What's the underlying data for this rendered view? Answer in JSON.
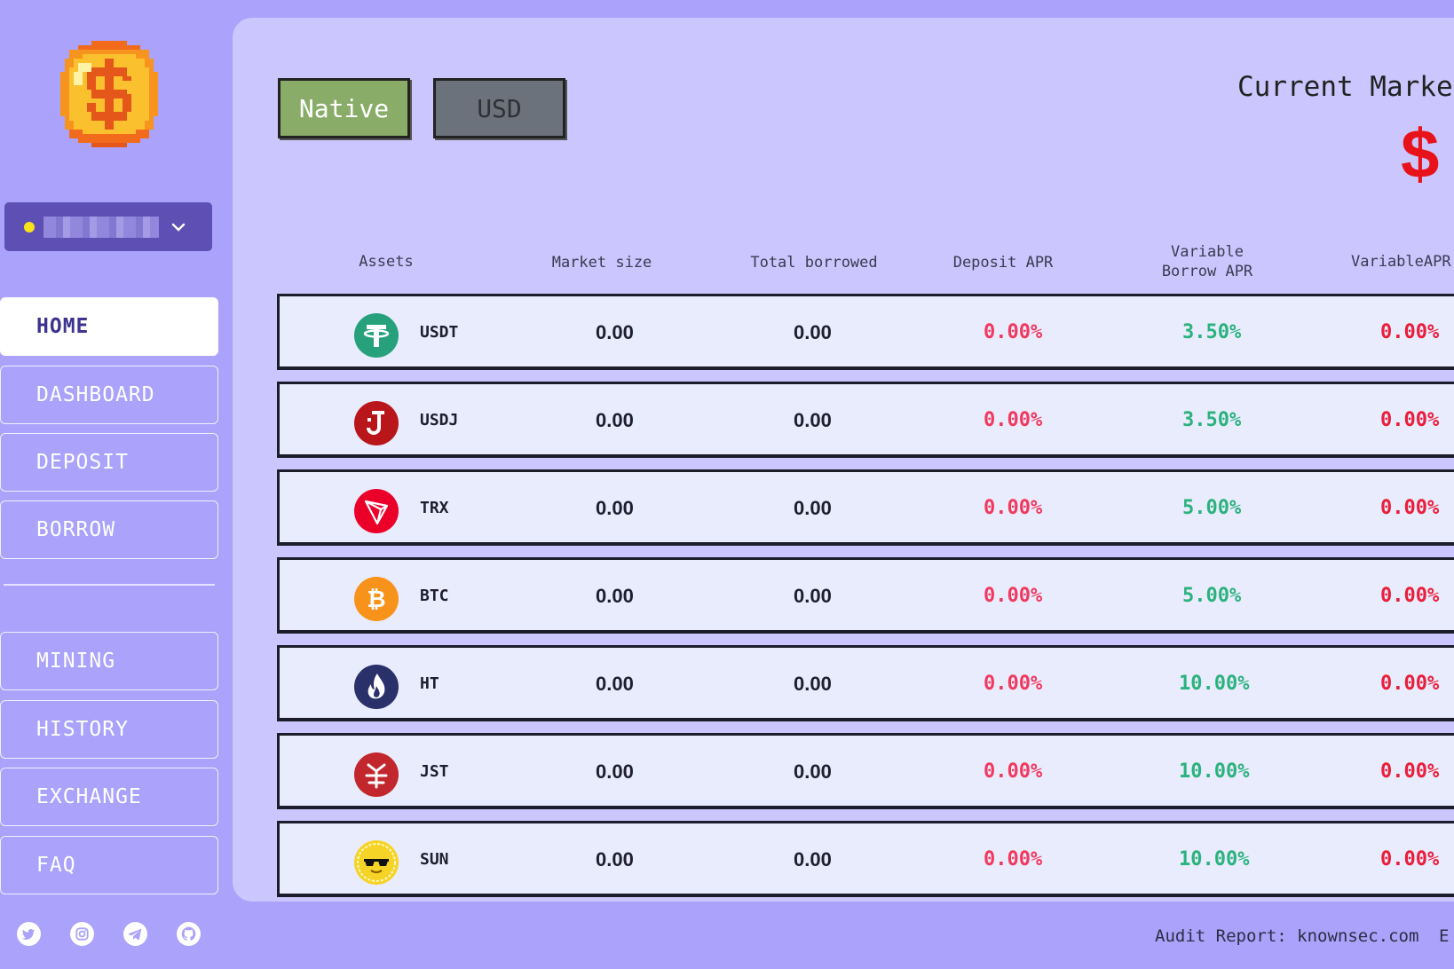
{
  "sidebar": {
    "nav": [
      {
        "label": "HOME",
        "active": true
      },
      {
        "label": "DASHBOARD"
      },
      {
        "label": "DEPOSIT"
      },
      {
        "label": "BORROW"
      },
      {
        "label": "MINING"
      },
      {
        "label": "HISTORY"
      },
      {
        "label": "EXCHANGE"
      },
      {
        "label": "FAQ"
      }
    ],
    "socials": [
      "twitter-icon",
      "instagram-icon",
      "telegram-icon",
      "github-icon"
    ]
  },
  "toggle": {
    "native_label": "Native",
    "usd_label": "USD"
  },
  "market": {
    "title": "Current Market S",
    "currency": "$"
  },
  "table": {
    "headers": {
      "assets": "Assets",
      "market_size": "Market size",
      "total_borrowed": "Total borrowed",
      "deposit_apr": "Deposit APR",
      "variable_borrow_apr_line1": "Variable",
      "variable_borrow_apr_line2": "Borrow APR",
      "variable_apr": "VariableAPR"
    },
    "rows": [
      {
        "symbol": "USDT",
        "market_size": "0.00",
        "total_borrowed": "0.00",
        "deposit_apr": "0.00%",
        "borrow_apr": "3.50%",
        "variable_apr": "0.00%",
        "icon": "usdt-icon",
        "color": "#26a17b"
      },
      {
        "symbol": "USDJ",
        "market_size": "0.00",
        "total_borrowed": "0.00",
        "deposit_apr": "0.00%",
        "borrow_apr": "3.50%",
        "variable_apr": "0.00%",
        "icon": "usdj-icon",
        "color": "#b9161b"
      },
      {
        "symbol": "TRX",
        "market_size": "0.00",
        "total_borrowed": "0.00",
        "deposit_apr": "0.00%",
        "borrow_apr": "5.00%",
        "variable_apr": "0.00%",
        "icon": "trx-icon",
        "color": "#eb0029"
      },
      {
        "symbol": "BTC",
        "market_size": "0.00",
        "total_borrowed": "0.00",
        "deposit_apr": "0.00%",
        "borrow_apr": "5.00%",
        "variable_apr": "0.00%",
        "icon": "btc-icon",
        "color": "#f7931a"
      },
      {
        "symbol": "HT",
        "market_size": "0.00",
        "total_borrowed": "0.00",
        "deposit_apr": "0.00%",
        "borrow_apr": "10.00%",
        "variable_apr": "0.00%",
        "icon": "ht-icon",
        "color": "#2a3069"
      },
      {
        "symbol": "JST",
        "market_size": "0.00",
        "total_borrowed": "0.00",
        "deposit_apr": "0.00%",
        "borrow_apr": "10.00%",
        "variable_apr": "0.00%",
        "icon": "jst-icon",
        "color": "#c1272d"
      },
      {
        "symbol": "SUN",
        "market_size": "0.00",
        "total_borrowed": "0.00",
        "deposit_apr": "0.00%",
        "borrow_apr": "10.00%",
        "variable_apr": "0.00%",
        "icon": "sun-icon",
        "color": "#f5d327"
      }
    ]
  },
  "footer": {
    "audit": "Audit Report: knownsec.com",
    "extra": "E"
  }
}
